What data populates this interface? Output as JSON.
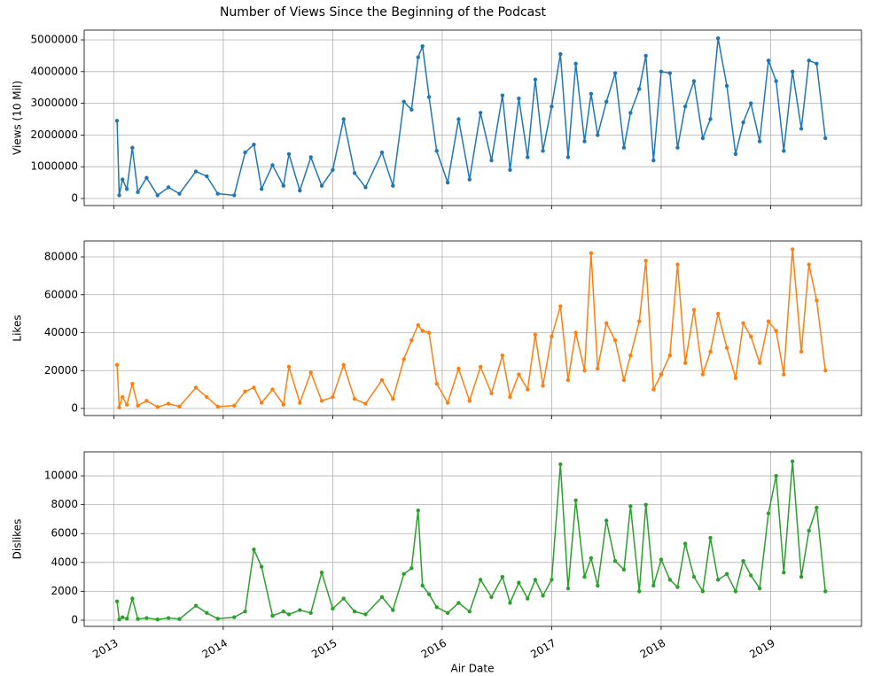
{
  "chart_data": [
    {
      "type": "line",
      "title": "Number of Views Since the Beginning of the Podcast",
      "ylabel": "Views (10 Mil)",
      "color": "#1f77b4",
      "grid": true,
      "xlim": [
        2012.73,
        2019.83
      ],
      "xticks": [
        2013,
        2014,
        2015,
        2016,
        2017,
        2018,
        2019
      ],
      "ylim": [
        -223000,
        5307000
      ],
      "yticks": [
        0,
        1000000,
        2000000,
        3000000,
        4000000,
        5000000
      ],
      "x": [
        2013.03,
        2013.05,
        2013.08,
        2013.12,
        2013.17,
        2013.22,
        2013.3,
        2013.4,
        2013.5,
        2013.6,
        2013.75,
        2013.85,
        2013.95,
        2014.1,
        2014.2,
        2014.28,
        2014.35,
        2014.45,
        2014.55,
        2014.6,
        2014.7,
        2014.8,
        2014.9,
        2015.0,
        2015.1,
        2015.2,
        2015.3,
        2015.45,
        2015.55,
        2015.65,
        2015.72,
        2015.78,
        2015.82,
        2015.88,
        2015.95,
        2016.05,
        2016.15,
        2016.25,
        2016.35,
        2016.45,
        2016.55,
        2016.62,
        2016.7,
        2016.78,
        2016.85,
        2016.92,
        2017.0,
        2017.08,
        2017.15,
        2017.22,
        2017.3,
        2017.36,
        2017.42,
        2017.5,
        2017.58,
        2017.66,
        2017.72,
        2017.8,
        2017.86,
        2017.93,
        2018.0,
        2018.08,
        2018.15,
        2018.22,
        2018.3,
        2018.38,
        2018.45,
        2018.52,
        2018.6,
        2018.68,
        2018.75,
        2018.82,
        2018.9,
        2018.98,
        2019.05,
        2019.12,
        2019.2,
        2019.28,
        2019.35,
        2019.42,
        2019.5
      ],
      "values": [
        2450000,
        100000,
        600000,
        300000,
        1600000,
        200000,
        650000,
        100000,
        350000,
        150000,
        850000,
        700000,
        150000,
        100000,
        1450000,
        1700000,
        300000,
        1050000,
        400000,
        1400000,
        250000,
        1300000,
        400000,
        900000,
        2500000,
        800000,
        350000,
        1450000,
        400000,
        3050000,
        2800000,
        4450000,
        4800000,
        3200000,
        1500000,
        500000,
        2500000,
        600000,
        2700000,
        1200000,
        3250000,
        900000,
        3150000,
        1300000,
        3750000,
        1500000,
        2900000,
        4550000,
        1300000,
        4250000,
        1800000,
        3300000,
        2000000,
        3050000,
        3950000,
        1600000,
        2700000,
        3450000,
        4500000,
        1200000,
        4000000,
        3950000,
        1600000,
        2900000,
        3700000,
        1900000,
        2500000,
        5050000,
        3550000,
        1400000,
        2400000,
        3000000,
        1800000,
        4350000,
        3700000,
        1500000,
        4000000,
        2200000,
        4350000,
        4250000,
        1900000
      ]
    },
    {
      "type": "line",
      "ylabel": "Likes",
      "color": "#ff7f0e",
      "grid": true,
      "xlim": [
        2012.73,
        2019.83
      ],
      "xticks": [
        2013,
        2014,
        2015,
        2016,
        2017,
        2018,
        2019
      ],
      "ylim": [
        -3740,
        88420
      ],
      "yticks": [
        0,
        20000,
        40000,
        60000,
        80000
      ],
      "x": [
        2013.03,
        2013.05,
        2013.08,
        2013.12,
        2013.17,
        2013.22,
        2013.3,
        2013.4,
        2013.5,
        2013.6,
        2013.75,
        2013.85,
        2013.95,
        2014.1,
        2014.2,
        2014.28,
        2014.35,
        2014.45,
        2014.55,
        2014.6,
        2014.7,
        2014.8,
        2014.9,
        2015.0,
        2015.1,
        2015.2,
        2015.3,
        2015.45,
        2015.55,
        2015.65,
        2015.72,
        2015.78,
        2015.82,
        2015.88,
        2015.95,
        2016.05,
        2016.15,
        2016.25,
        2016.35,
        2016.45,
        2016.55,
        2016.62,
        2016.7,
        2016.78,
        2016.85,
        2016.92,
        2017.0,
        2017.08,
        2017.15,
        2017.22,
        2017.3,
        2017.36,
        2017.42,
        2017.5,
        2017.58,
        2017.66,
        2017.72,
        2017.8,
        2017.86,
        2017.93,
        2018.0,
        2018.08,
        2018.15,
        2018.22,
        2018.3,
        2018.38,
        2018.45,
        2018.52,
        2018.6,
        2018.68,
        2018.75,
        2018.82,
        2018.9,
        2018.98,
        2019.05,
        2019.12,
        2019.2,
        2019.28,
        2019.35,
        2019.42,
        2019.5
      ],
      "values": [
        23000,
        500,
        6000,
        2000,
        13000,
        1500,
        4000,
        800,
        2500,
        1000,
        11000,
        6000,
        1000,
        1500,
        9000,
        11000,
        3000,
        10000,
        2000,
        22000,
        3000,
        19000,
        4000,
        6000,
        23000,
        5000,
        2500,
        15000,
        5000,
        26000,
        36000,
        44000,
        41000,
        40000,
        13000,
        3000,
        21000,
        4000,
        22000,
        8000,
        28000,
        6000,
        18000,
        10000,
        39000,
        12000,
        38000,
        54000,
        15000,
        40000,
        20000,
        82000,
        21000,
        45000,
        36000,
        15000,
        28000,
        46000,
        78000,
        10000,
        18000,
        28000,
        76000,
        24000,
        52000,
        18000,
        30000,
        50000,
        32000,
        16000,
        45000,
        38000,
        24000,
        46000,
        41000,
        18000,
        84000,
        30000,
        76000,
        57000,
        20000
      ]
    },
    {
      "type": "line",
      "ylabel": "Dislikes",
      "xlabel": "Air Date",
      "color": "#2ca02c",
      "grid": true,
      "xlim": [
        2012.73,
        2019.83
      ],
      "xticks": [
        2013,
        2014,
        2015,
        2016,
        2017,
        2018,
        2019
      ],
      "ylim": [
        -430,
        11660
      ],
      "yticks": [
        0,
        2000,
        4000,
        6000,
        8000,
        10000
      ],
      "x": [
        2013.03,
        2013.05,
        2013.08,
        2013.12,
        2013.17,
        2013.22,
        2013.3,
        2013.4,
        2013.5,
        2013.6,
        2013.75,
        2013.85,
        2013.95,
        2014.1,
        2014.2,
        2014.28,
        2014.35,
        2014.45,
        2014.55,
        2014.6,
        2014.7,
        2014.8,
        2014.9,
        2015.0,
        2015.1,
        2015.2,
        2015.3,
        2015.45,
        2015.55,
        2015.65,
        2015.72,
        2015.78,
        2015.82,
        2015.88,
        2015.95,
        2016.05,
        2016.15,
        2016.25,
        2016.35,
        2016.45,
        2016.55,
        2016.62,
        2016.7,
        2016.78,
        2016.85,
        2016.92,
        2017.0,
        2017.08,
        2017.15,
        2017.22,
        2017.3,
        2017.36,
        2017.42,
        2017.5,
        2017.58,
        2017.66,
        2017.72,
        2017.8,
        2017.86,
        2017.93,
        2018.0,
        2018.08,
        2018.15,
        2018.22,
        2018.3,
        2018.38,
        2018.45,
        2018.52,
        2018.6,
        2018.68,
        2018.75,
        2018.82,
        2018.9,
        2018.98,
        2019.05,
        2019.12,
        2019.2,
        2019.28,
        2019.35,
        2019.42,
        2019.5
      ],
      "values": [
        1300,
        50,
        200,
        100,
        1500,
        80,
        150,
        50,
        150,
        80,
        1000,
        500,
        100,
        200,
        600,
        4900,
        3700,
        300,
        600,
        400,
        700,
        500,
        3300,
        800,
        1500,
        600,
        400,
        1600,
        700,
        3200,
        3600,
        7600,
        2400,
        1800,
        900,
        500,
        1200,
        600,
        2800,
        1600,
        3000,
        1200,
        2600,
        1500,
        2800,
        1700,
        2800,
        10800,
        2200,
        8300,
        3000,
        4300,
        2400,
        6900,
        4100,
        3500,
        7900,
        2000,
        8000,
        2400,
        4200,
        2800,
        2300,
        5300,
        3000,
        2000,
        5700,
        2800,
        3200,
        2000,
        4100,
        3100,
        2200,
        7400,
        10000,
        3300,
        11000,
        3000,
        6200,
        7800,
        2000
      ]
    }
  ]
}
